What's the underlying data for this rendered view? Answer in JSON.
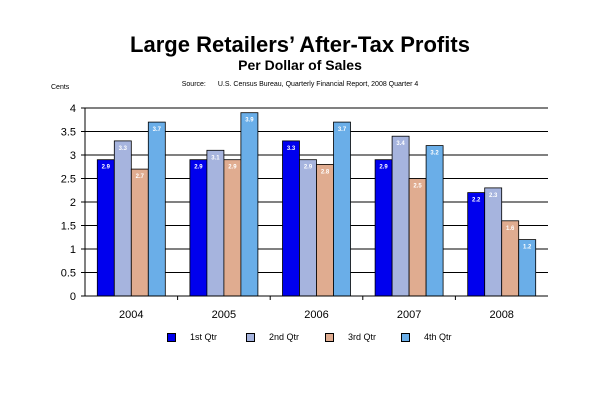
{
  "chart_data": {
    "type": "bar",
    "title": "Large Retailers’ After-Tax Profits",
    "subtitle": "Per Dollar of Sales",
    "source_label": "Source:",
    "source_text": "U.S. Census Bureau, Quarterly Financial Report, 2008 Quarter 4",
    "ylabel": "Cents",
    "ylim": [
      0,
      4
    ],
    "yticks": [
      "0",
      "0.5",
      "1",
      "1.5",
      "2",
      "2.5",
      "3",
      "3.5",
      "4"
    ],
    "categories": [
      "2004",
      "2005",
      "2006",
      "2007",
      "2008"
    ],
    "series": [
      {
        "name": "1st Qtr",
        "color": "#0000ee",
        "values": [
          2.9,
          2.9,
          3.3,
          2.9,
          2.2
        ],
        "labels": [
          "2.9",
          "2.9",
          "3.3",
          "2.9",
          "2.2"
        ]
      },
      {
        "name": "2nd Qtr",
        "color": "#a6b4de",
        "values": [
          3.3,
          3.1,
          2.9,
          3.4,
          2.3
        ],
        "labels": [
          "3.3",
          "3.1",
          "2.9",
          "3.4",
          "2.3"
        ]
      },
      {
        "name": "3rd Qtr",
        "color": "#e0ac90",
        "values": [
          2.7,
          2.9,
          2.8,
          2.5,
          1.6
        ],
        "labels": [
          "2.7",
          "2.9",
          "2.8",
          "2.5",
          "1.6"
        ]
      },
      {
        "name": "4th Qtr",
        "color": "#6aaee8",
        "values": [
          3.7,
          3.9,
          3.7,
          3.2,
          1.2
        ],
        "labels": [
          "3.7",
          "3.9",
          "3.7",
          "3.2",
          "1.2"
        ]
      }
    ],
    "grid": true,
    "legend_position": "bottom"
  }
}
